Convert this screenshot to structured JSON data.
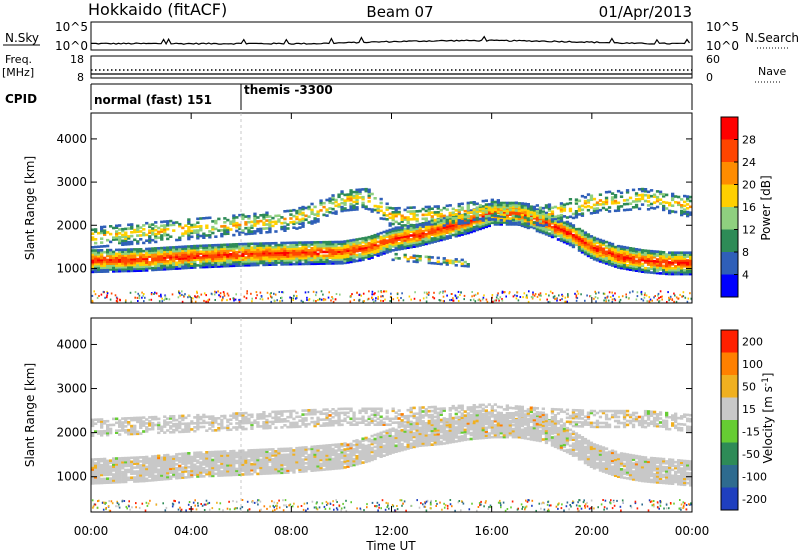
{
  "header": {
    "station": "Hokkaido (fitACF)",
    "beam": "Beam 07",
    "date": "01/Apr/2013"
  },
  "status_panels": {
    "nsky_label": "N.Sky",
    "nsearch_label": "N.Search",
    "nsky_ticks": [
      "10^5",
      "10^0"
    ],
    "freq_label_1": "Freq.",
    "freq_label_2": "[MHz]",
    "freq_ticks": [
      "18",
      "8"
    ],
    "nave_label": "Nave",
    "nave_ticks": [
      "60",
      "0"
    ],
    "cpid_label": "CPID",
    "cpid_segments": [
      {
        "label": "normal (fast) 151",
        "start_hour": 0,
        "end_hour": 6
      },
      {
        "label": "themis -3300",
        "start_hour": 6,
        "end_hour": 24
      }
    ]
  },
  "chart_data": [
    {
      "type": "heatmap",
      "panel": "power",
      "ylabel": "Slant Range [km]",
      "ylim": [
        200,
        4600
      ],
      "yticks": [
        1000,
        2000,
        3000,
        4000
      ],
      "xlim": [
        0,
        24
      ],
      "colorbar": {
        "label": "Power [dB]",
        "range": [
          0,
          32
        ],
        "ticks": [
          4,
          8,
          12,
          16,
          20,
          24,
          28
        ],
        "colors": [
          "#0000ff",
          "#2f5fb8",
          "#2e8b57",
          "#8fd07f",
          "#ffd000",
          "#ff8c00",
          "#ff4500",
          "#ff0000"
        ]
      },
      "bands": [
        {
          "name": "main",
          "x": [
            0,
            2,
            4,
            6,
            8,
            10,
            11,
            12,
            13,
            14,
            15,
            16,
            17,
            18,
            19,
            20,
            21,
            22,
            23,
            24
          ],
          "y": [
            1150,
            1180,
            1250,
            1300,
            1330,
            1350,
            1450,
            1650,
            1750,
            1900,
            2050,
            2250,
            2250,
            2050,
            1800,
            1450,
            1250,
            1150,
            1100,
            1100
          ]
        },
        {
          "name": "upper",
          "x": [
            0,
            2,
            4,
            6,
            8,
            9,
            10,
            11,
            12,
            14,
            16,
            18,
            20,
            22,
            24
          ],
          "y": [
            1700,
            1800,
            1900,
            2000,
            2100,
            2300,
            2550,
            2600,
            2150,
            2200,
            2350,
            2200,
            2500,
            2600,
            2400
          ]
        },
        {
          "name": "lower",
          "x": [
            12,
            13,
            14,
            15
          ],
          "y": [
            1250,
            1200,
            1150,
            1100
          ]
        }
      ]
    },
    {
      "type": "heatmap",
      "panel": "velocity",
      "ylabel": "Slant Range [km]",
      "xlabel": "Time UT",
      "ylim": [
        200,
        4600
      ],
      "yticks": [
        1000,
        2000,
        3000,
        4000
      ],
      "xlim": [
        0,
        24
      ],
      "xticks": [
        "00:00",
        "04:00",
        "08:00",
        "12:00",
        "16:00",
        "20:00",
        "00:00"
      ],
      "colorbar": {
        "label": "Velocity [m s^-1]",
        "ticks": [
          "200",
          "100",
          "50",
          "15",
          "-15",
          "-50",
          "-100",
          "-200"
        ],
        "colors": [
          "#1f3fbf",
          "#2e6b8f",
          "#2e8b57",
          "#66cc33",
          "#c8c8c8",
          "#f0b020",
          "#ff8000",
          "#ff2000"
        ]
      },
      "bands": [
        {
          "name": "main",
          "x": [
            0,
            2,
            4,
            6,
            8,
            10,
            11,
            12,
            13,
            14,
            15,
            16,
            17,
            18,
            19,
            20,
            21,
            22,
            23,
            24
          ],
          "y": [
            1100,
            1150,
            1250,
            1300,
            1350,
            1450,
            1600,
            1800,
            1950,
            2000,
            2100,
            2150,
            2150,
            2050,
            1800,
            1450,
            1250,
            1150,
            1100,
            1050
          ]
        },
        {
          "name": "upper",
          "x": [
            0,
            2,
            4,
            6,
            8,
            10,
            12,
            14,
            16,
            18,
            20,
            22,
            24
          ],
          "y": [
            2100,
            2150,
            2200,
            2250,
            2300,
            2350,
            2350,
            2400,
            2450,
            2350,
            2300,
            2300,
            2200
          ]
        }
      ]
    }
  ]
}
